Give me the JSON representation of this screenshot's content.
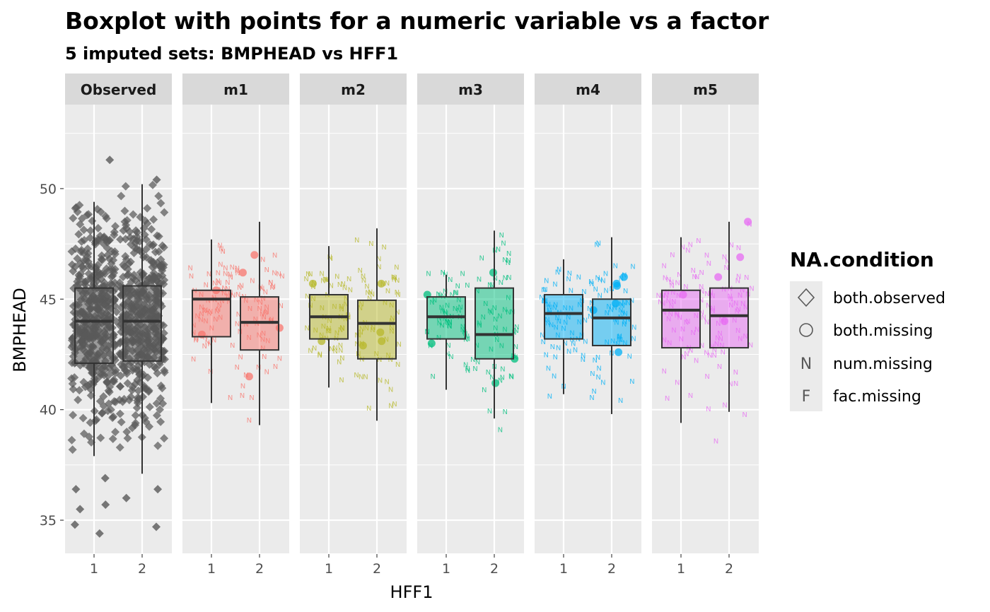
{
  "chart_data": {
    "type": "boxplot",
    "title": "Boxplot with points for a numeric variable vs a factor",
    "subtitle": "5  imputed sets:  BMPHEAD vs HFF1",
    "xlabel": "HFF1",
    "ylabel": "BMPHEAD",
    "ylim": [
      33.5,
      53.8
    ],
    "y_ticks": [
      35,
      40,
      45,
      50
    ],
    "categories": [
      "1",
      "2"
    ],
    "legend": {
      "title": "NA.condition",
      "position": "right",
      "entries": [
        {
          "label": "both.observed",
          "shape": "diamond"
        },
        {
          "label": "both.missing",
          "shape": "circle"
        },
        {
          "label": "num.missing",
          "shape": "N"
        },
        {
          "label": "fac.missing",
          "shape": "F"
        }
      ]
    },
    "panels": [
      {
        "name": "Observed",
        "color": "#595959",
        "boxes": [
          {
            "category": "1",
            "lower_whisker": 37.9,
            "q1": 42.1,
            "median": 44.0,
            "q3": 45.5,
            "upper_whisker": 49.4
          },
          {
            "category": "2",
            "lower_whisker": 37.1,
            "q1": 42.2,
            "median": 44.0,
            "q3": 45.6,
            "upper_whisker": 50.2
          }
        ],
        "outliers": [
          {
            "category": "1",
            "values": [
              51.3,
              36.9,
              36.4,
              35.7,
              35.5,
              34.8,
              34.4
            ]
          },
          {
            "category": "2",
            "values": [
              50.4,
              36.4,
              36.0,
              34.7
            ]
          }
        ]
      },
      {
        "name": "m1",
        "color": "#F8766D",
        "boxes": [
          {
            "category": "1",
            "lower_whisker": 40.3,
            "q1": 43.3,
            "median": 45.0,
            "q3": 45.4,
            "upper_whisker": 47.7
          },
          {
            "category": "2",
            "lower_whisker": 39.3,
            "q1": 42.7,
            "median": 43.95,
            "q3": 45.1,
            "upper_whisker": 48.5
          }
        ],
        "missing_points": [
          {
            "category": "1",
            "values": [
              45.4,
              43.4
            ]
          },
          {
            "category": "2",
            "values": [
              47.0,
              46.2,
              43.7,
              41.5
            ]
          }
        ]
      },
      {
        "name": "m2",
        "color": "#B7B82A",
        "boxes": [
          {
            "category": "1",
            "lower_whisker": 41.0,
            "q1": 43.2,
            "median": 44.2,
            "q3": 45.2,
            "upper_whisker": 47.4
          },
          {
            "category": "2",
            "lower_whisker": 39.5,
            "q1": 42.3,
            "median": 43.9,
            "q3": 44.95,
            "upper_whisker": 48.2
          }
        ],
        "missing_points": [
          {
            "category": "1",
            "values": [
              45.7,
              43.1
            ]
          },
          {
            "category": "2",
            "values": [
              45.7,
              43.5,
              43.1,
              42.9
            ]
          }
        ]
      },
      {
        "name": "m3",
        "color": "#00BF7D",
        "boxes": [
          {
            "category": "1",
            "lower_whisker": 40.9,
            "q1": 43.2,
            "median": 44.2,
            "q3": 45.1,
            "upper_whisker": 46.1
          },
          {
            "category": "2",
            "lower_whisker": 39.6,
            "q1": 42.3,
            "median": 43.4,
            "q3": 45.5,
            "upper_whisker": 48.1
          }
        ],
        "missing_points": [
          {
            "category": "1",
            "values": [
              45.2,
              43.0
            ]
          },
          {
            "category": "2",
            "values": [
              46.2,
              42.3,
              41.2
            ]
          }
        ]
      },
      {
        "name": "m4",
        "color": "#00B0F6",
        "boxes": [
          {
            "category": "1",
            "lower_whisker": 40.7,
            "q1": 43.2,
            "median": 44.35,
            "q3": 45.2,
            "upper_whisker": 46.8
          },
          {
            "category": "2",
            "lower_whisker": 39.8,
            "q1": 42.9,
            "median": 44.15,
            "q3": 45.0,
            "upper_whisker": 47.8
          }
        ],
        "missing_points": [
          {
            "category": "1",
            "values": []
          },
          {
            "category": "2",
            "values": [
              46.0,
              45.7,
              45.6,
              44.8,
              44.5,
              42.6
            ]
          }
        ]
      },
      {
        "name": "m5",
        "color": "#E76BF3",
        "boxes": [
          {
            "category": "1",
            "lower_whisker": 39.4,
            "q1": 42.8,
            "median": 44.5,
            "q3": 45.4,
            "upper_whisker": 47.8
          },
          {
            "category": "2",
            "lower_whisker": 39.9,
            "q1": 42.8,
            "median": 44.25,
            "q3": 45.5,
            "upper_whisker": 48.5
          }
        ],
        "missing_points": [
          {
            "category": "1",
            "values": [
              45.2
            ]
          },
          {
            "category": "2",
            "values": [
              48.5,
              46.9,
              46.0,
              44.0
            ]
          }
        ]
      }
    ]
  }
}
